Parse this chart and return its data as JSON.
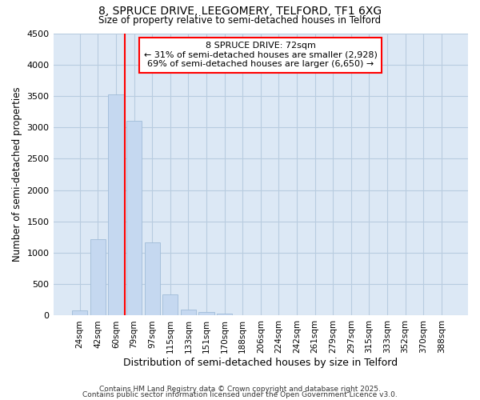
{
  "title1": "8, SPRUCE DRIVE, LEEGOMERY, TELFORD, TF1 6XG",
  "title2": "Size of property relative to semi-detached houses in Telford",
  "xlabel": "Distribution of semi-detached houses by size in Telford",
  "ylabel": "Number of semi-detached properties",
  "categories": [
    "24sqm",
    "42sqm",
    "60sqm",
    "79sqm",
    "97sqm",
    "115sqm",
    "133sqm",
    "151sqm",
    "170sqm",
    "188sqm",
    "206sqm",
    "224sqm",
    "242sqm",
    "261sqm",
    "279sqm",
    "297sqm",
    "315sqm",
    "333sqm",
    "352sqm",
    "370sqm",
    "388sqm"
  ],
  "values": [
    80,
    1220,
    3520,
    3100,
    1170,
    340,
    100,
    55,
    25,
    8,
    2,
    1,
    0,
    0,
    0,
    0,
    0,
    0,
    0,
    0,
    0
  ],
  "bar_color": "#c5d8f0",
  "bar_edge_color": "#a0bcd8",
  "annotation_line1": "8 SPRUCE DRIVE: 72sqm",
  "annotation_line2": "← 31% of semi-detached houses are smaller (2,928)",
  "annotation_line3": "69% of semi-detached houses are larger (6,650) →",
  "ylim": [
    0,
    4500
  ],
  "yticks": [
    0,
    500,
    1000,
    1500,
    2000,
    2500,
    3000,
    3500,
    4000,
    4500
  ],
  "bg_color": "#ffffff",
  "ax_bg_color": "#dce8f5",
  "grid_color": "#b8cce0",
  "footer1": "Contains HM Land Registry data © Crown copyright and database right 2025.",
  "footer2": "Contains public sector information licensed under the Open Government Licence v3.0."
}
